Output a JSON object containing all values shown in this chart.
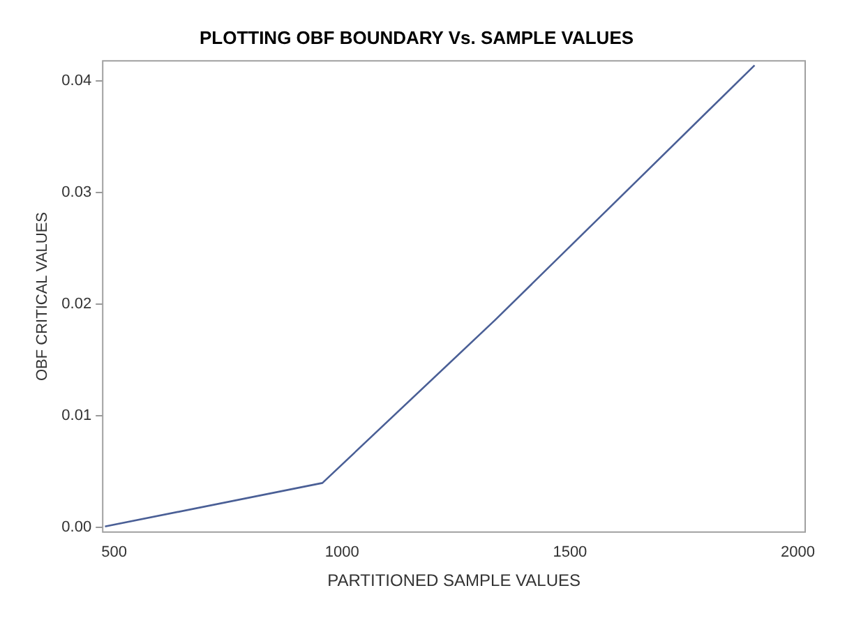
{
  "chart_data": {
    "type": "line",
    "title": "PLOTTING OBF BOUNDARY Vs. SAMPLE VALUES",
    "xlabel": "PARTITIONED SAMPLE VALUES",
    "ylabel": "OBF CRITICAL VALUES",
    "x": [
      480,
      957,
      1336,
      1905
    ],
    "series": [
      {
        "color": "#4a5f96",
        "values": [
          0.0001,
          0.004,
          0.0186,
          0.0414
        ]
      }
    ],
    "xlim": [
      475,
      2016
    ],
    "xticks": [
      500,
      1000,
      1500,
      2000
    ],
    "ylim": [
      -0.0004,
      0.0418
    ],
    "yticks": [
      {
        "value": 0,
        "label": "0.00"
      },
      {
        "value": 0.01,
        "label": "0.01"
      },
      {
        "value": 0.02,
        "label": "0.02"
      },
      {
        "value": 0.03,
        "label": "0.03"
      },
      {
        "value": 0.04,
        "label": "0.04"
      }
    ],
    "grid": false,
    "legend": false,
    "marker": "none",
    "line_style": "solid"
  }
}
